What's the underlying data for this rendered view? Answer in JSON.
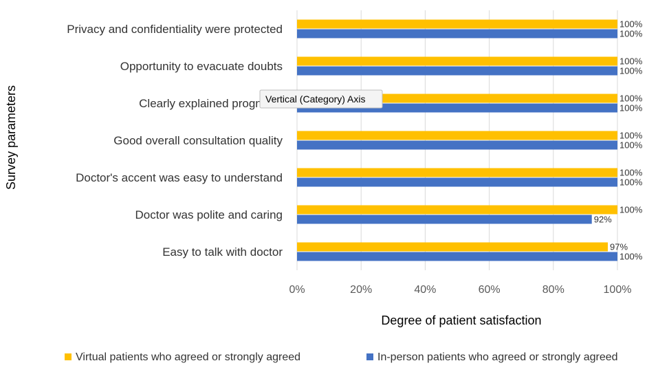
{
  "chart_data": {
    "type": "bar",
    "orientation": "horizontal",
    "categories": [
      "Privacy and confidentiality were protected",
      "Opportunity to evacuate doubts",
      "Clearly explained prognosis",
      "Good overall consultation quality",
      "Doctor's accent was easy to understand",
      "Doctor was polite and caring",
      "Easy to talk with doctor"
    ],
    "series": [
      {
        "name": "Virtual patients who agreed or strongly agreed",
        "color": "#FFC000",
        "values": [
          100,
          100,
          100,
          100,
          100,
          100,
          97
        ],
        "labels": [
          "100%",
          "100%",
          "100%",
          "100%",
          "100%",
          "100%",
          "97%"
        ]
      },
      {
        "name": "In-person patients who agreed or strongly agreed",
        "color": "#4472C4",
        "values": [
          100,
          100,
          100,
          100,
          100,
          92,
          100
        ],
        "labels": [
          "100%",
          "100%",
          "100%",
          "100%",
          "100%",
          "92%",
          "100%"
        ]
      }
    ],
    "xlim": [
      0,
      100
    ],
    "xticks": [
      0,
      20,
      40,
      60,
      80,
      100
    ],
    "xtick_labels": [
      "0%",
      "20%",
      "40%",
      "60%",
      "80%",
      "100%"
    ],
    "xlabel": "Degree of patient satisfaction",
    "ylabel": "Survey parameters",
    "grid": "vertical",
    "legend": "bottom",
    "gridline_color": "#d9d9d9"
  },
  "tooltip": {
    "text": "Vertical (Category) Axis",
    "anchor_category": "Clearly explained prognosis"
  }
}
